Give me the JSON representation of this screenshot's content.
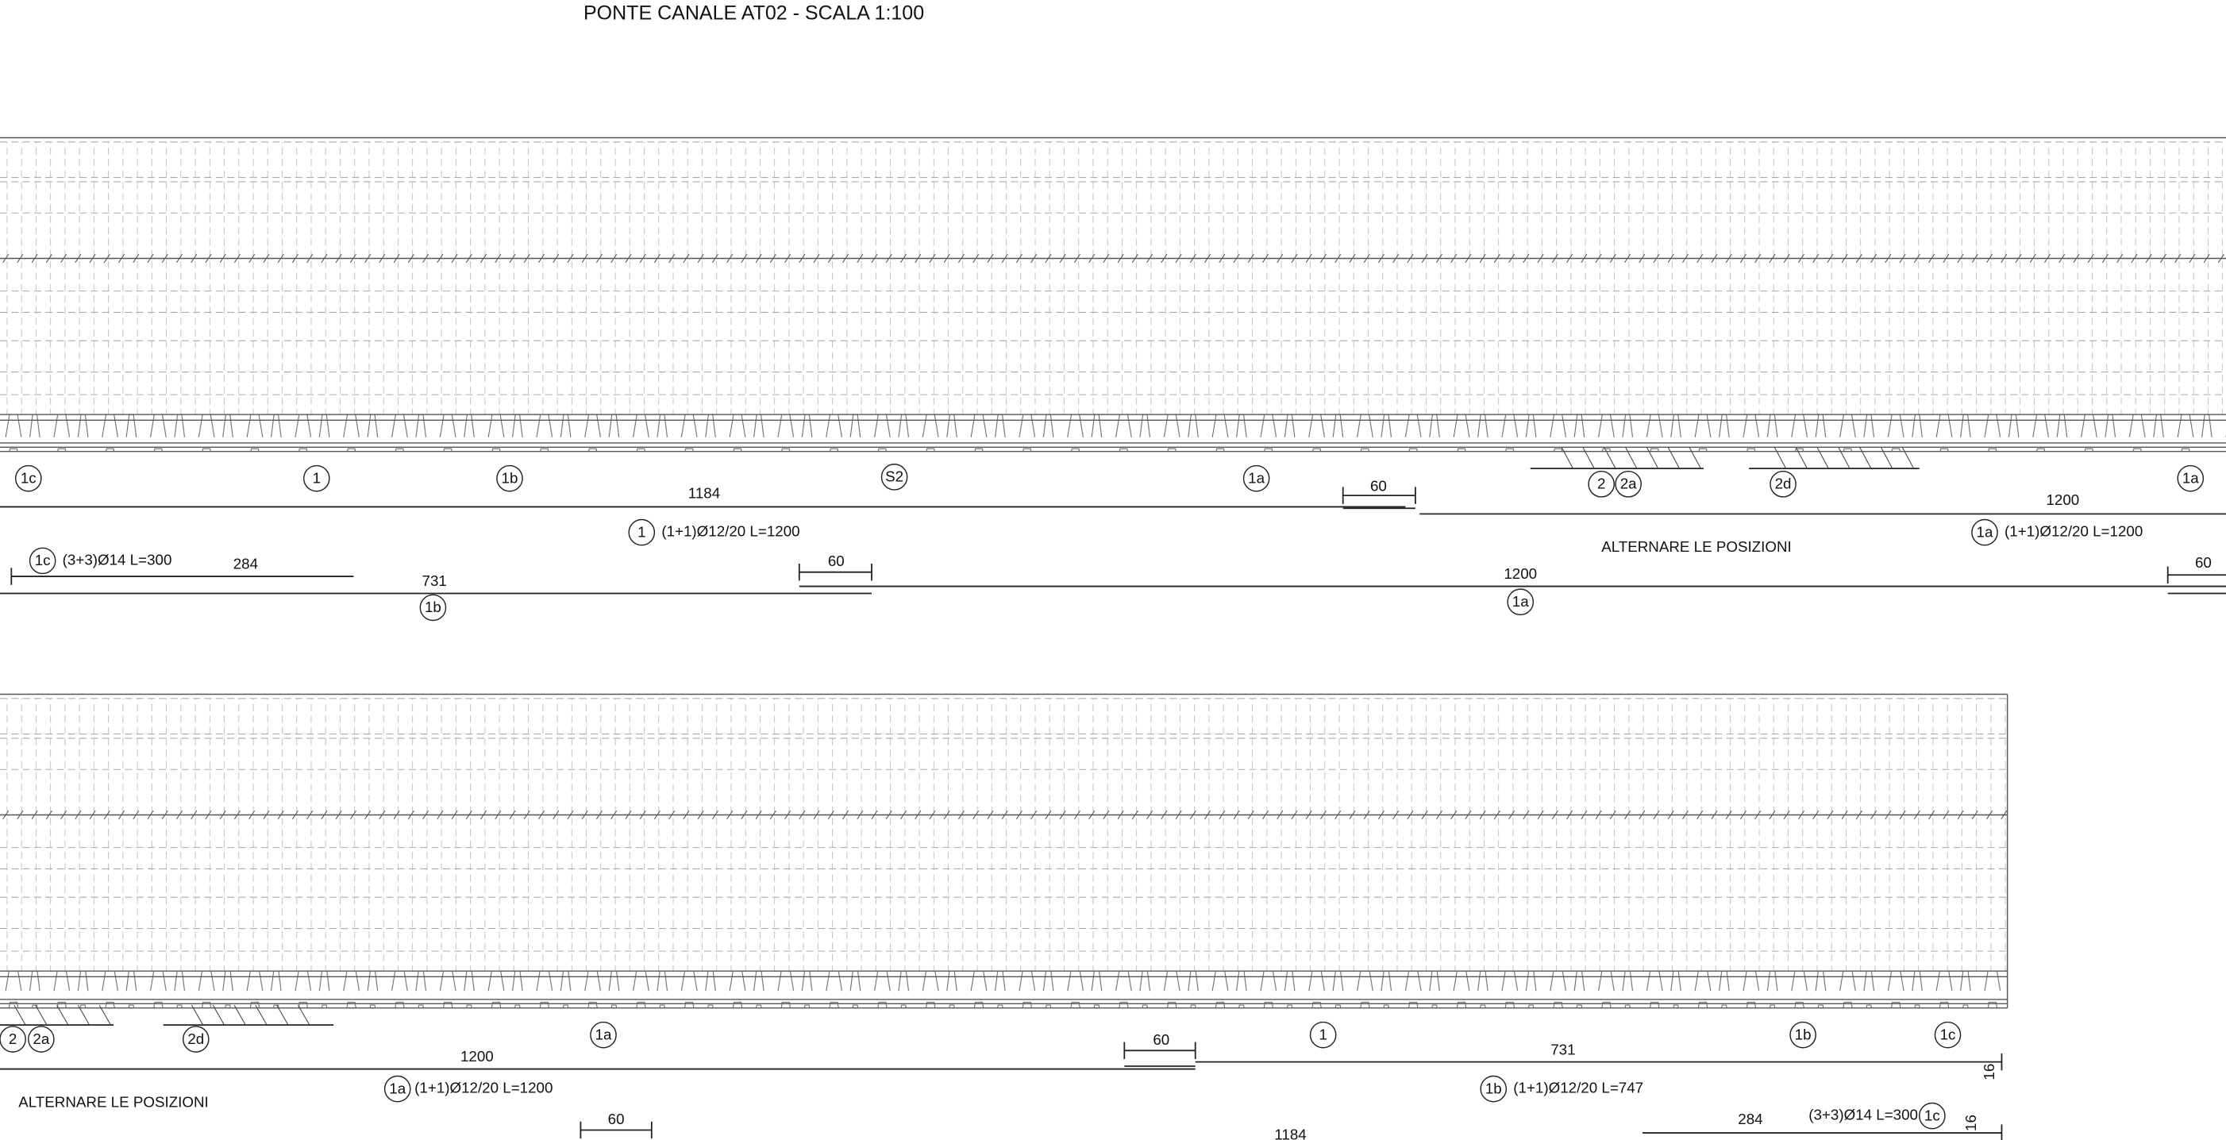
{
  "title": "PONTE CANALE AT02 - SCALA 1:100",
  "top": {
    "markers": [
      "1c",
      "1",
      "1b",
      "S2",
      "1a",
      "2",
      "2a",
      "2d",
      "1a",
      "1",
      "1a",
      "1c",
      "1b",
      "1a"
    ],
    "notes": [
      "1184",
      "60",
      "1200",
      "(1+1)Ø12/20 L=1200",
      "(1+1)Ø12/20 L=1200",
      "ALTERNARE LE POSIZIONI",
      "(3+3)Ø14 L=300",
      "284",
      "731",
      "60",
      "1200",
      "60"
    ]
  },
  "bottom": {
    "markers": [
      "2",
      "2a",
      "2d",
      "1a",
      "1",
      "1b",
      "1c",
      "1a",
      "1b",
      "1c"
    ],
    "notes": [
      "1200",
      "(1+1)Ø12/20 L=1200",
      "ALTERNARE LE POSIZIONI",
      "60",
      "731",
      "(1+1)Ø12/20 L=747",
      "284",
      "(3+3)Ø14 L=300",
      "60",
      "1184",
      "16",
      "16"
    ]
  }
}
